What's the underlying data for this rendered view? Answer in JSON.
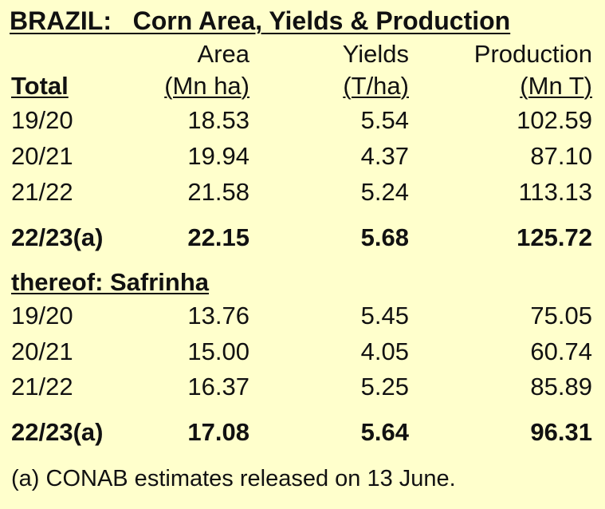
{
  "chart_data": {
    "type": "table",
    "title": "BRAZIL:   Corn Area, Yields & Production",
    "columns": [
      {
        "name": "Area",
        "unit": "(Mn ha)"
      },
      {
        "name": "Yields",
        "unit": "(T/ha)"
      },
      {
        "name": "Production",
        "unit": "(Mn T)"
      }
    ],
    "sections": [
      {
        "label": "Total",
        "rows": [
          {
            "season": "19/20",
            "area": "18.53",
            "yields": "5.54",
            "production": "102.59",
            "bold": false
          },
          {
            "season": "20/21",
            "area": "19.94",
            "yields": "4.37",
            "production": "87.10",
            "bold": false
          },
          {
            "season": "21/22",
            "area": "21.58",
            "yields": "5.24",
            "production": "113.13",
            "bold": false
          },
          {
            "season": "22/23(a)",
            "area": "22.15",
            "yields": "5.68",
            "production": "125.72",
            "bold": true
          }
        ]
      },
      {
        "label": "thereof: Safrinha",
        "rows": [
          {
            "season": "19/20",
            "area": "13.76",
            "yields": "5.45",
            "production": "75.05",
            "bold": false
          },
          {
            "season": "20/21",
            "area": "15.00",
            "yields": "4.05",
            "production": "60.74",
            "bold": false
          },
          {
            "season": "21/22",
            "area": "16.37",
            "yields": "5.25",
            "production": "85.89",
            "bold": false
          },
          {
            "season": "22/23(a)",
            "area": "17.08",
            "yields": "5.64",
            "production": "96.31",
            "bold": true
          }
        ]
      }
    ],
    "footnote": "(a) CONAB estimates released on 13 June."
  },
  "colors": {
    "background": "#ffffcc",
    "text": "#111111"
  }
}
